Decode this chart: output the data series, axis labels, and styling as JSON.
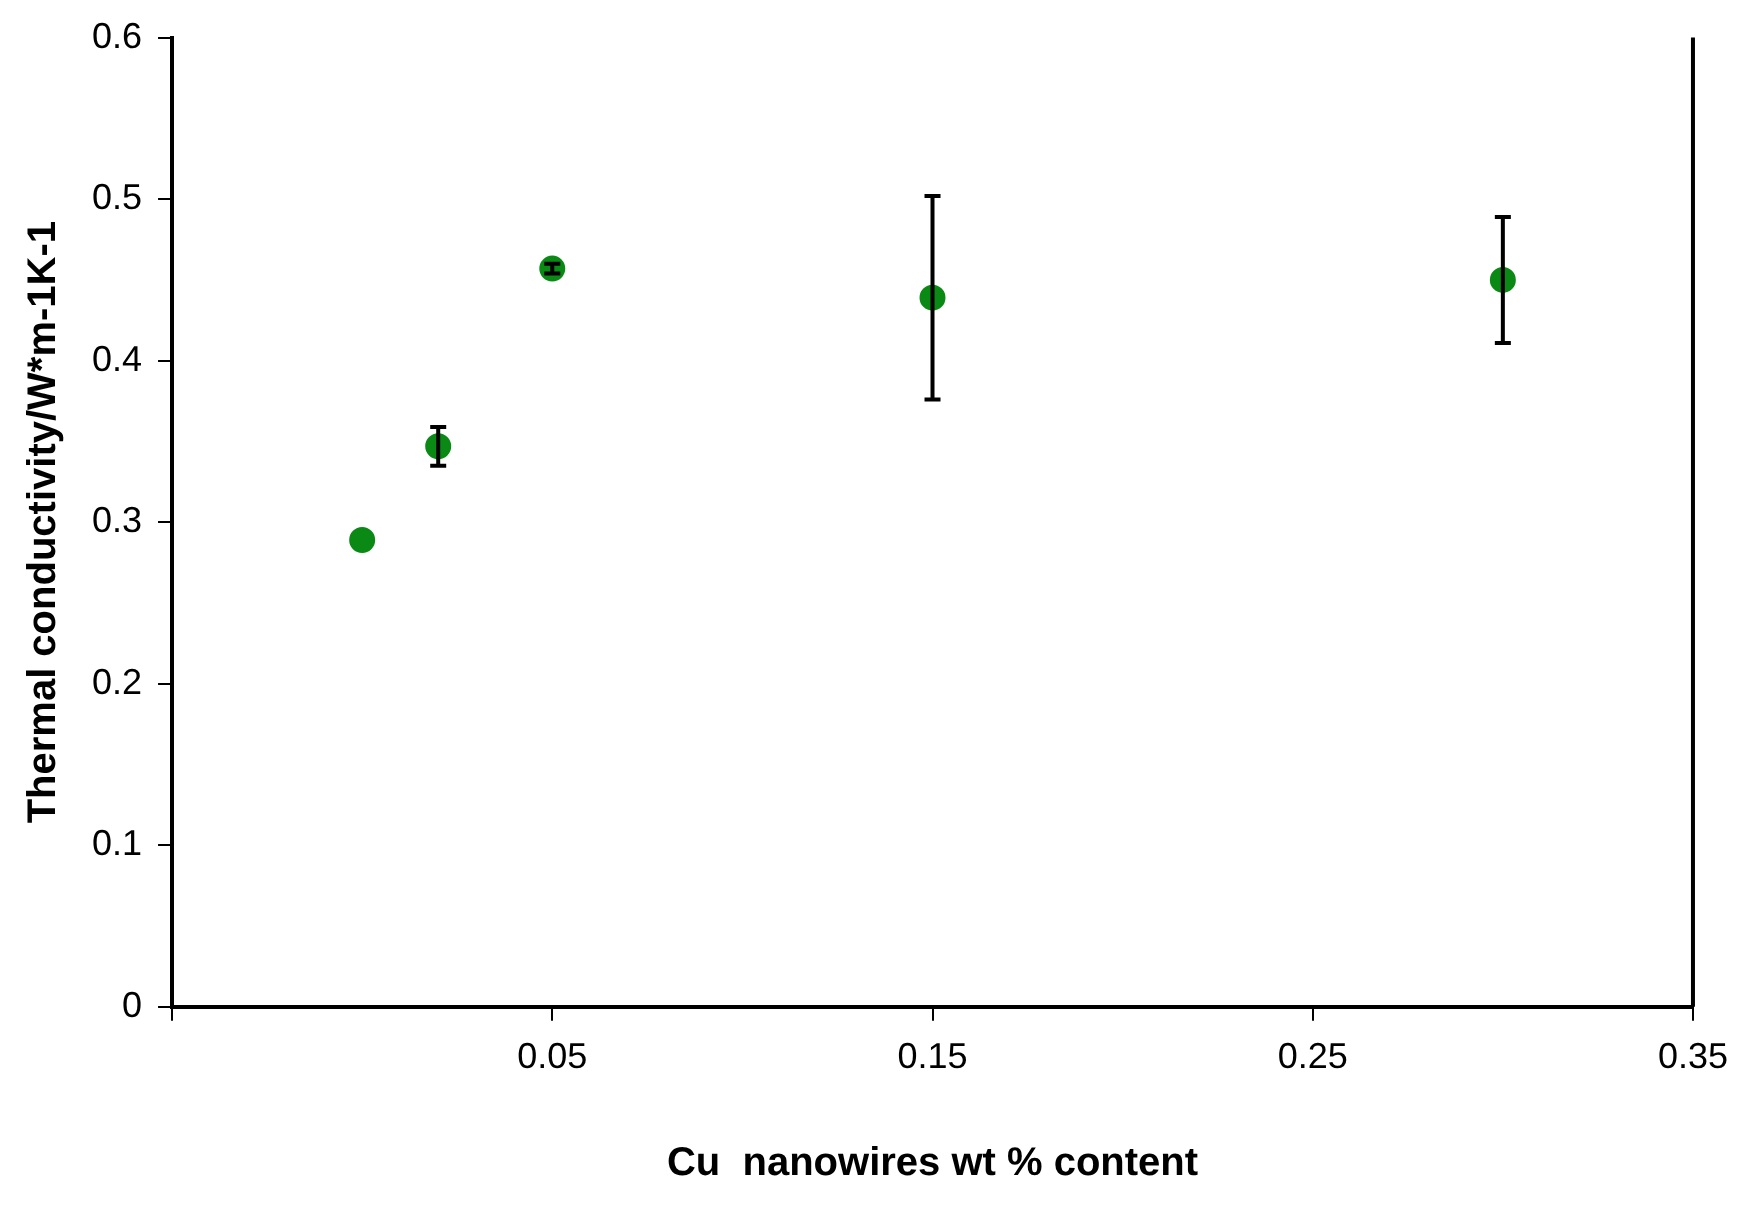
{
  "chart_data": {
    "type": "scatter",
    "xlabel": "Cu  nanowires wt % content",
    "ylabel": "Thermal conductivity/W*m-1K-1",
    "x": [
      0,
      0.02,
      0.05,
      0.15,
      0.3
    ],
    "series": [
      {
        "color": "#0a8a14",
        "values": [
          0.289,
          0.347,
          0.457,
          0.439,
          0.45
        ],
        "errors": [
          null,
          0.012,
          0.003,
          0.063,
          0.039
        ]
      }
    ],
    "xlim": [
      -0.05,
      0.35
    ],
    "xticks": [
      {
        "value": -0.05,
        "label": null
      },
      0.05,
      0.15,
      0.25,
      0.35
    ],
    "ylim": [
      0,
      0.6
    ],
    "yticks": [
      0,
      0.1,
      0.2,
      0.3,
      0.4,
      0.5,
      0.6
    ],
    "grid": false,
    "legend": false,
    "marker": "circle"
  }
}
